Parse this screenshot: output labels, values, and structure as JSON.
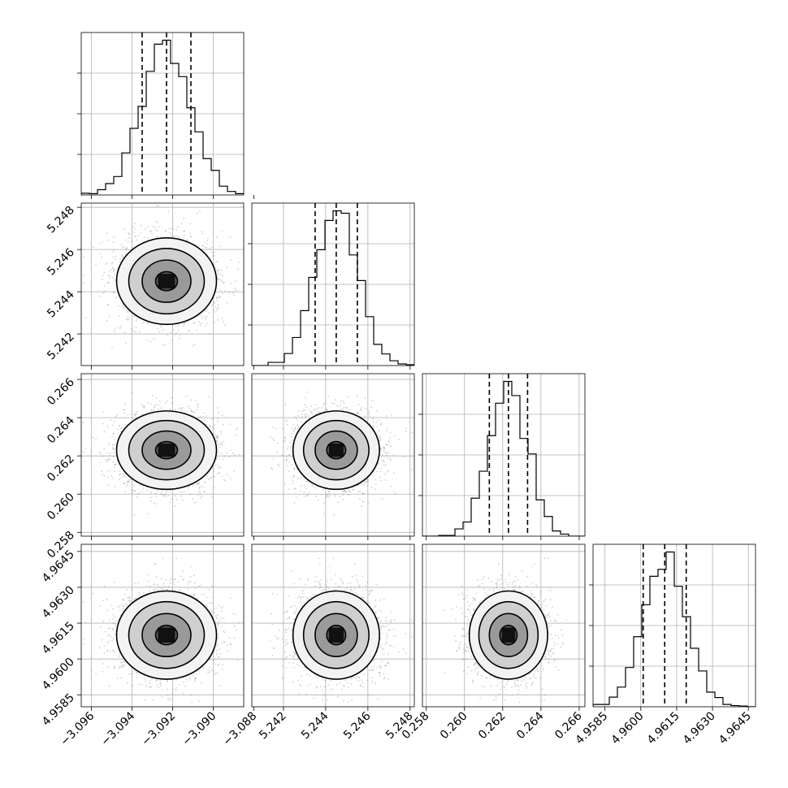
{
  "chart_data": {
    "type": "corner",
    "title": "",
    "parameters": [
      {
        "mean": -3.0923,
        "sd": 0.0012,
        "range": [
          -3.0965,
          -3.0885
        ],
        "ticks": [
          -3.096,
          -3.094,
          -3.092,
          -3.09,
          -3.088
        ],
        "tick_labels": [
          "−3.096",
          "−3.094",
          "−3.092",
          "−3.090",
          "−3.088"
        ],
        "quantiles": [
          -3.0935,
          -3.0923,
          -3.0911
        ]
      },
      {
        "mean": 5.2445,
        "sd": 0.001,
        "range": [
          5.2405,
          5.2482
        ],
        "ticks": [
          5.242,
          5.244,
          5.246,
          5.248
        ],
        "tick_labels": [
          "5.242",
          "5.244",
          "5.246",
          "5.248"
        ],
        "quantiles": [
          5.2435,
          5.2445,
          5.2455
        ]
      },
      {
        "mean": 0.2623,
        "sd": 0.001,
        "range": [
          0.2578,
          0.2663
        ],
        "ticks": [
          0.258,
          0.26,
          0.262,
          0.264,
          0.266
        ],
        "tick_labels": [
          "0.258",
          "0.260",
          "0.262",
          "0.264",
          "0.266"
        ],
        "quantiles": [
          0.2613,
          0.2623,
          0.2633
        ]
      },
      {
        "mean": 4.961,
        "sd": 0.0009,
        "range": [
          4.958,
          4.9648
        ],
        "ticks": [
          4.9585,
          4.96,
          4.9615,
          4.963,
          4.9645
        ],
        "tick_labels": [
          "4.9585",
          "4.9600",
          "4.9615",
          "4.9630",
          "4.9645"
        ],
        "quantiles": [
          4.9601,
          4.961,
          4.9619
        ]
      }
    ],
    "histogram_bins": 20,
    "contour_levels": 4,
    "line_color": "#000000",
    "grid": true,
    "quantile_line_style": "dashed"
  }
}
